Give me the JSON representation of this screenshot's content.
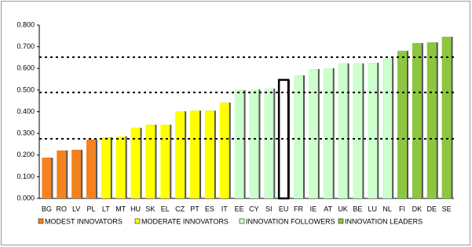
{
  "chart_data": {
    "type": "bar",
    "categories": [
      "BG",
      "RO",
      "LV",
      "PL",
      "LT",
      "MT",
      "HU",
      "SK",
      "EL",
      "CZ",
      "PT",
      "ES",
      "IT",
      "EE",
      "CY",
      "SI",
      "EU",
      "FR",
      "IE",
      "AT",
      "UK",
      "BE",
      "LU",
      "NL",
      "FI",
      "DK",
      "DE",
      "SE"
    ],
    "values": [
      0.188,
      0.221,
      0.224,
      0.271,
      0.282,
      0.286,
      0.326,
      0.34,
      0.34,
      0.402,
      0.405,
      0.405,
      0.442,
      0.5,
      0.503,
      0.507,
      0.547,
      0.568,
      0.597,
      0.601,
      0.623,
      0.623,
      0.626,
      0.648,
      0.681,
      0.717,
      0.72,
      0.746
    ],
    "colors": [
      "#f4821f",
      "#f4821f",
      "#f4821f",
      "#f4821f",
      "#ffff00",
      "#ffff00",
      "#ffff00",
      "#ffff00",
      "#ffff00",
      "#ffff00",
      "#ffff00",
      "#ffff00",
      "#ffff00",
      "#ccffcc",
      "#ccffcc",
      "#ccffcc",
      "#ffffff",
      "#ccffcc",
      "#ccffcc",
      "#ccffcc",
      "#ccffcc",
      "#ccffcc",
      "#ccffcc",
      "#ccffcc",
      "#8dc63f",
      "#8dc63f",
      "#8dc63f",
      "#8dc63f"
    ],
    "legend": [
      {
        "name": "MODEST INNOVATORS",
        "color": "#f4821f"
      },
      {
        "name": "MODERATE INNOVATORS",
        "color": "#ffff00"
      },
      {
        "name": "INNOVATION FOLLOWERS",
        "color": "#ccffcc"
      },
      {
        "name": "INNOVATION LEADERS",
        "color": "#8dc63f"
      }
    ],
    "reference_lines": [
      0.275,
      0.489,
      0.652
    ],
    "ylim": [
      0,
      0.8
    ],
    "yticks": [
      {
        "value": 0,
        "label": "0.000"
      },
      {
        "value": 0.1,
        "label": "0.100"
      },
      {
        "value": 0.2,
        "label": "0.200"
      },
      {
        "value": 0.3,
        "label": "0.300"
      },
      {
        "value": 0.4,
        "label": "0.400"
      },
      {
        "value": 0.5,
        "label": "0.500"
      },
      {
        "value": 0.6,
        "label": "0.600"
      },
      {
        "value": 0.7,
        "label": "0.700"
      },
      {
        "value": 0.8,
        "label": "0.800"
      }
    ]
  }
}
